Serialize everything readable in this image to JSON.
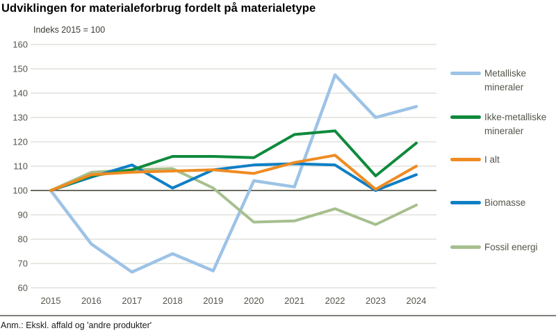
{
  "header": {
    "title": "Udviklingen for materialeforbrug fordelt på materialetype",
    "subtitle": "Indeks 2015 = 100"
  },
  "footnote": "Anm.: Ekskl. affald og 'andre produkter'",
  "chart_data": {
    "type": "line",
    "x": [
      2015,
      2016,
      2017,
      2018,
      2019,
      2020,
      2021,
      2022,
      2023,
      2024
    ],
    "series": [
      {
        "name": "Metalliske mineraler",
        "color": "#9DC3E6",
        "values": [
          100,
          78,
          66.5,
          74,
          67,
          104,
          101.5,
          147.5,
          130,
          134.5
        ]
      },
      {
        "name": "Ikke-metalliske mineraler",
        "color": "#0E8A3C",
        "values": [
          100,
          106,
          108.5,
          114,
          114,
          113.5,
          123,
          124.5,
          106,
          119.5
        ]
      },
      {
        "name": "I alt",
        "color": "#EF8B22",
        "values": [
          100,
          106.5,
          107.5,
          108,
          108.5,
          107,
          111.5,
          114.5,
          100.5,
          110
        ]
      },
      {
        "name": "Biomasse",
        "color": "#0F7FC6",
        "values": [
          100,
          105.5,
          110.5,
          101,
          108.5,
          110.5,
          111,
          110.5,
          100,
          106.5
        ]
      },
      {
        "name": "Fossil energi",
        "color": "#A6BF8E",
        "values": [
          100,
          107.5,
          108.5,
          109,
          101,
          87,
          87.5,
          92.5,
          86,
          94
        ]
      }
    ],
    "ylim": [
      60,
      160
    ],
    "ytick_step": 10,
    "yticks": [
      60,
      70,
      80,
      90,
      100,
      110,
      120,
      130,
      140,
      150,
      160
    ],
    "baseline": 100,
    "grid": "horizontal",
    "legend_position": "right",
    "draw_order": [
      "Metalliske mineraler",
      "Fossil energi",
      "Biomasse",
      "Ikke-metalliske mineraler",
      "I alt"
    ]
  },
  "colors": {
    "grid": "#DBDBD3",
    "baseline_line": "#6B6B5E",
    "axis_text": "#54554c",
    "bottom_rule": "#53534f"
  }
}
